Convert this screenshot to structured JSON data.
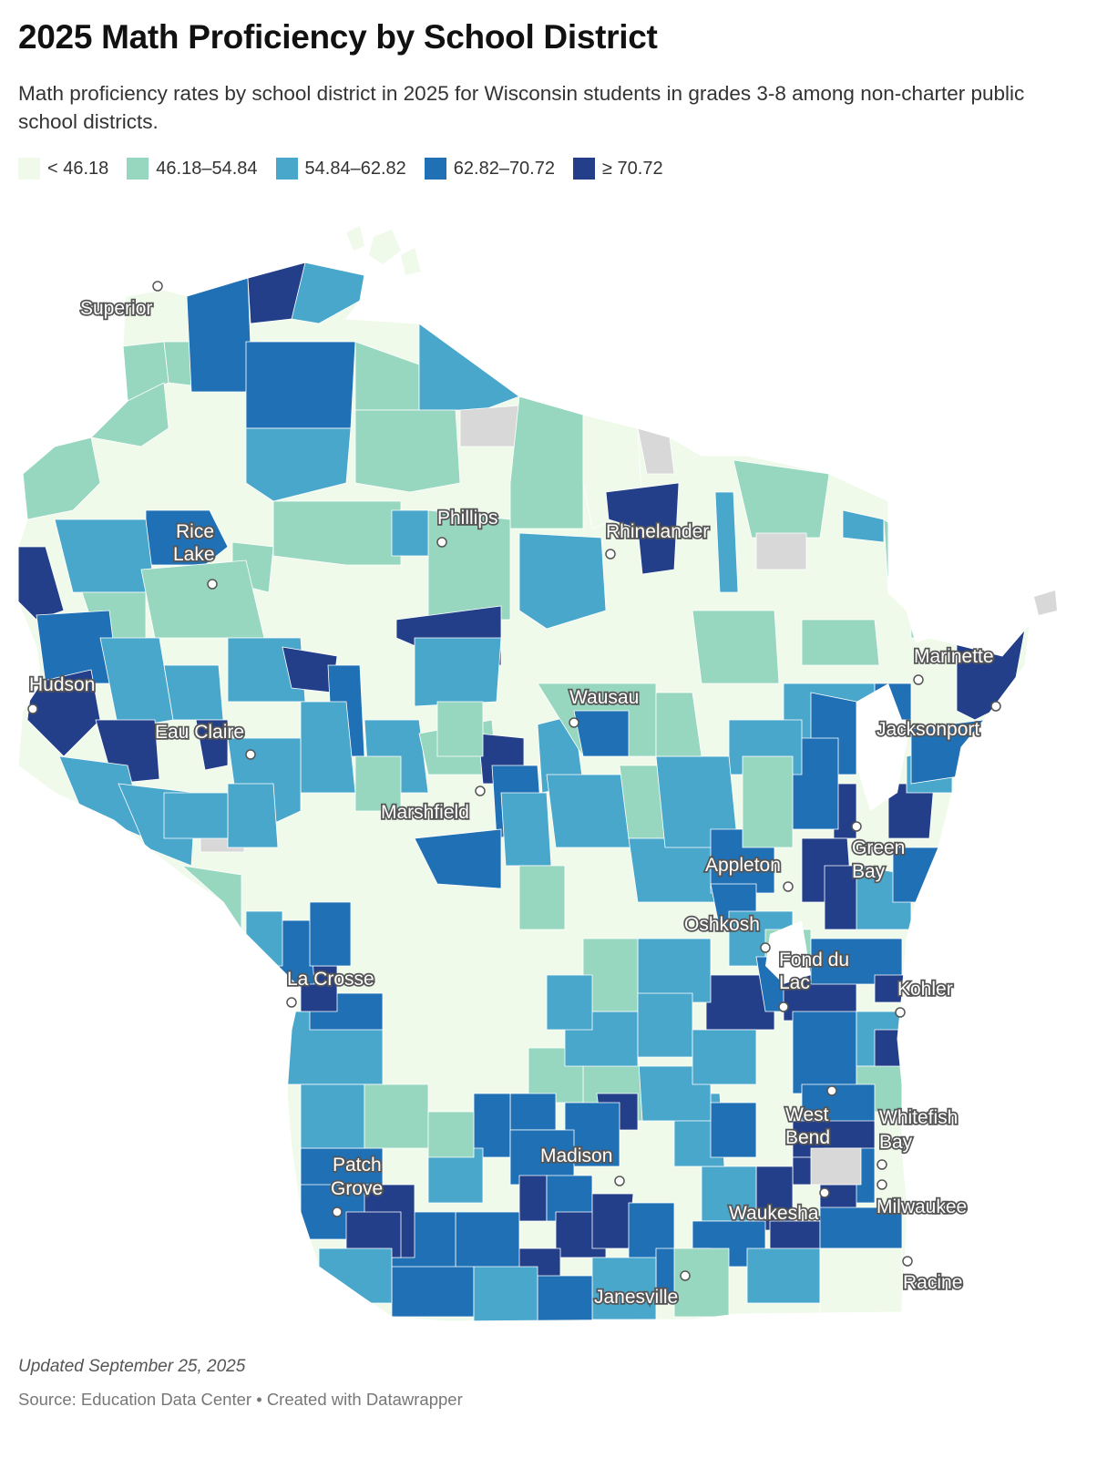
{
  "title": "2025 Math Proficiency by School District",
  "subtitle": "Math proficiency rates by school district in 2025 for Wisconsin students in grades 3-8 among non-charter public school districts.",
  "legend": [
    {
      "label": "< 46.18",
      "color": "#effaea"
    },
    {
      "label": "46.18–54.84",
      "color": "#97d7c0"
    },
    {
      "label": "54.84–62.82",
      "color": "#4aa7cc"
    },
    {
      "label": "62.82–70.72",
      "color": "#1f70b4"
    },
    {
      "label": "≥ 70.72",
      "color": "#233f8a"
    }
  ],
  "no_data_color": "#d8d8d8",
  "cities": [
    {
      "name": "Superior"
    },
    {
      "name": "Rice Lake"
    },
    {
      "name": "Phillips"
    },
    {
      "name": "Rhinelander"
    },
    {
      "name": "Hudson"
    },
    {
      "name": "Eau Claire"
    },
    {
      "name": "Wausau"
    },
    {
      "name": "Marinette"
    },
    {
      "name": "Jacksonport"
    },
    {
      "name": "Marshfield"
    },
    {
      "name": "Green Bay"
    },
    {
      "name": "Appleton"
    },
    {
      "name": "Oshkosh"
    },
    {
      "name": "Fond du Lac"
    },
    {
      "name": "La Crosse"
    },
    {
      "name": "Kohler"
    },
    {
      "name": "West Bend"
    },
    {
      "name": "Whitefish Bay"
    },
    {
      "name": "Patch Grove"
    },
    {
      "name": "Madison"
    },
    {
      "name": "Milwaukee"
    },
    {
      "name": "Waukesha"
    },
    {
      "name": "Racine"
    },
    {
      "name": "Janesville"
    }
  ],
  "footer": {
    "updated": "Updated September 25, 2025",
    "source": "Source: Education Data Center • Created with Datawrapper"
  }
}
